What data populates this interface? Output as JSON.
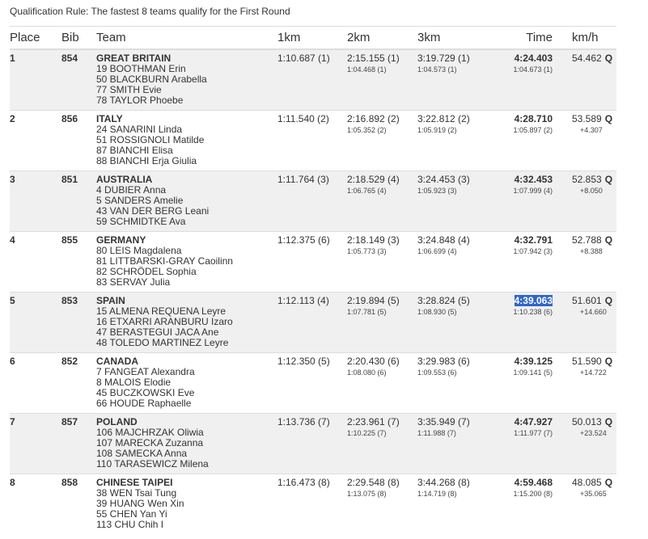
{
  "qualification_rule": "Qualification Rule: The fastest 8 teams qualify for the First Round",
  "columns": {
    "place": "Place",
    "bib": "Bib",
    "team": "Team",
    "km1": "1km",
    "km2": "2km",
    "km3": "3km",
    "time": "Time",
    "kmh": "km/h"
  },
  "selection_color": "#3166c8",
  "rows": [
    {
      "place": "1",
      "bib": "854",
      "team": "GREAT BRITAIN",
      "riders": [
        "19 BOOTHMAN Erin",
        "50 BLACKBURN Arabella",
        "77 SMITH Evie",
        "78 TAYLOR Phoebe"
      ],
      "km1": "1:10.687 (1)",
      "km2": "2:15.155 (1)",
      "km2_split": "1:04.468 (1)",
      "km3": "3:19.729 (1)",
      "km3_split": "1:04.573 (1)",
      "time": "4:24.403",
      "time_split": "1:04.673 (1)",
      "kmh": "54.462",
      "q": "Q",
      "gap": ""
    },
    {
      "place": "2",
      "bib": "856",
      "team": "ITALY",
      "riders": [
        "24 SANARINI Linda",
        "51 ROSSIGNOLI Matilde",
        "87 BIANCHI Elisa",
        "88 BIANCHI Erja Giulia"
      ],
      "km1": "1:11.540 (2)",
      "km2": "2:16.892 (2)",
      "km2_split": "1:05.352 (2)",
      "km3": "3:22.812 (2)",
      "km3_split": "1:05.919 (2)",
      "time": "4:28.710",
      "time_split": "1:05.897 (2)",
      "kmh": "53.589",
      "q": "Q",
      "gap": "+4.307"
    },
    {
      "place": "3",
      "bib": "851",
      "team": "AUSTRALIA",
      "riders": [
        "4 DUBIER Anna",
        "5 SANDERS Amelie",
        "43 VAN DER BERG Leani",
        "59 SCHMIDTKE Ava"
      ],
      "km1": "1:11.764 (3)",
      "km2": "2:18.529 (4)",
      "km2_split": "1:06.765 (4)",
      "km3": "3:24.453 (3)",
      "km3_split": "1:05.923 (3)",
      "time": "4:32.453",
      "time_split": "1:07.999 (4)",
      "kmh": "52.853",
      "q": "Q",
      "gap": "+8.050"
    },
    {
      "place": "4",
      "bib": "855",
      "team": "GERMANY",
      "riders": [
        "80 LEIS Magdalena",
        "81 LITTBARSKI-GRAY Caoilinn",
        "82 SCHRÖDEL Sophia",
        "83 SERVAY Julia"
      ],
      "km1": "1:12.375 (6)",
      "km2": "2:18.149 (3)",
      "km2_split": "1:05.773 (3)",
      "km3": "3:24.848 (4)",
      "km3_split": "1:06.699 (4)",
      "time": "4:32.791",
      "time_split": "1:07.942 (3)",
      "kmh": "52.788",
      "q": "Q",
      "gap": "+8.388"
    },
    {
      "place": "5",
      "bib": "853",
      "team": "SPAIN",
      "riders": [
        "15 ALMENA REQUENA Leyre",
        "16 ETXARRI ARANBURU Izaro",
        "47 BERASTEGUI JACA Ane",
        "48 TOLEDO MARTINEZ Leyre"
      ],
      "km1": "1:12.113 (4)",
      "km2": "2:19.894 (5)",
      "km2_split": "1:07.781 (5)",
      "km3": "3:28.824 (5)",
      "km3_split": "1:08.930 (5)",
      "time": "4:39.063",
      "time_split": "1:10.238 (6)",
      "kmh": "51.601",
      "q": "Q",
      "gap": "+14.660",
      "selected": true
    },
    {
      "place": "6",
      "bib": "852",
      "team": "CANADA",
      "riders": [
        "7 FANGEAT Alexandra",
        "8 MALOIS Elodie",
        "45 BUCZKOWSKI Eve",
        "66 HOUDE Raphaelle"
      ],
      "km1": "1:12.350 (5)",
      "km2": "2:20.430 (6)",
      "km2_split": "1:08.080 (6)",
      "km3": "3:29.983 (6)",
      "km3_split": "1:09.553 (6)",
      "time": "4:39.125",
      "time_split": "1:09.141 (5)",
      "kmh": "51.590",
      "q": "Q",
      "gap": "+14.722"
    },
    {
      "place": "7",
      "bib": "857",
      "team": "POLAND",
      "riders": [
        "106 MAJCHRZAK Oliwia",
        "107 MARECKA Zuzanna",
        "108 SAMECKA Anna",
        "110 TARASEWICZ Milena"
      ],
      "km1": "1:13.736 (7)",
      "km2": "2:23.961 (7)",
      "km2_split": "1:10.225 (7)",
      "km3": "3:35.949 (7)",
      "km3_split": "1:11.988 (7)",
      "time": "4:47.927",
      "time_split": "1:11.977 (7)",
      "kmh": "50.013",
      "q": "Q",
      "gap": "+23.524"
    },
    {
      "place": "8",
      "bib": "858",
      "team": "CHINESE TAIPEI",
      "riders": [
        "38 WEN Tsai Tung",
        "39 HUANG Wen Xin",
        "55 CHEN Yan Yi",
        "113 CHU Chih I"
      ],
      "km1": "1:16.473 (8)",
      "km2": "2:29.548 (8)",
      "km2_split": "1:13.075 (8)",
      "km3": "3:44.268 (8)",
      "km3_split": "1:14.719 (8)",
      "time": "4:59.468",
      "time_split": "1:15.200 (8)",
      "kmh": "48.085",
      "q": "Q",
      "gap": "+35.065"
    }
  ]
}
